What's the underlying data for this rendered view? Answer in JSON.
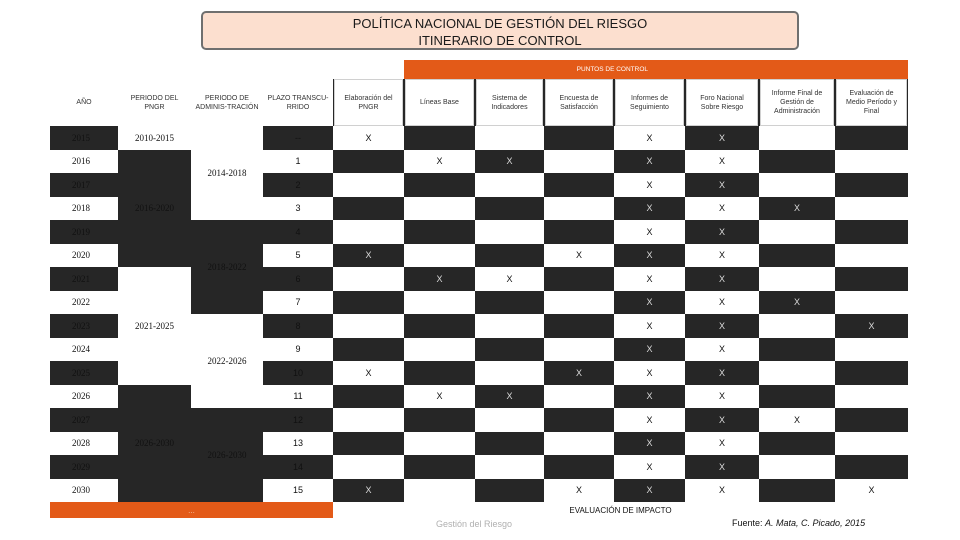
{
  "title": {
    "line1": "POLÍTICA NACIONAL DE GESTIÓN DEL RIESGO",
    "line2": "ITINERARIO DE CONTROL"
  },
  "table": {
    "puntos_header": "PUNTOS DE CONTROL",
    "col_headers": {
      "anio": "AÑO",
      "periodo_pngr": "PERIODO DEL PNGR",
      "periodo_admin": "PERIODO DE ADMINIS-TRACIÓN",
      "plazo": "PLAZO TRANSCU-RRIDO",
      "c1": "Elaboración del PNGR",
      "c2": "Líneas Base",
      "c3": "Sistema de Indicadores",
      "c4": "Encuesta de Satisfacción",
      "c5": "Informes de Seguimiento",
      "c6": "Foro Nacional Sobre Riesgo",
      "c7": "Informe Final de Gestión de Administración",
      "c8": "Evaluación de Medio Período y Final"
    },
    "years": [
      "2015",
      "2016",
      "2017",
      "2018",
      "2019",
      "2020",
      "2021",
      "2022",
      "2023",
      "2024",
      "2025",
      "2026",
      "2027",
      "2028",
      "2029",
      "2030"
    ],
    "plazo": [
      "--",
      "1",
      "2",
      "3",
      "4",
      "5",
      "6",
      "7",
      "8",
      "9",
      "10",
      "11",
      "12",
      "13",
      "14",
      "15"
    ],
    "pngr_periods": [
      "2010-2015",
      "2016-2020",
      "2021-2025",
      "2026-2030"
    ],
    "admin_periods": [
      "2014-2018",
      "2018-2022",
      "2022-2026",
      "2026-2030"
    ],
    "marks": [
      [
        "X",
        "",
        "",
        "",
        "X",
        "X",
        "",
        ""
      ],
      [
        "",
        "X",
        "X",
        "",
        "X",
        "X",
        "",
        ""
      ],
      [
        "",
        "",
        "",
        "",
        "X",
        "X",
        "",
        ""
      ],
      [
        "",
        "",
        "",
        "",
        "X",
        "X",
        "X",
        ""
      ],
      [
        "",
        "",
        "",
        "",
        "X",
        "X",
        "",
        ""
      ],
      [
        "X",
        "",
        "",
        "X",
        "X",
        "X",
        "",
        ""
      ],
      [
        "",
        "X",
        "X",
        "",
        "X",
        "X",
        "",
        ""
      ],
      [
        "",
        "",
        "",
        "",
        "X",
        "X",
        "X",
        ""
      ],
      [
        "",
        "",
        "",
        "",
        "X",
        "X",
        "",
        "X"
      ],
      [
        "",
        "",
        "",
        "",
        "X",
        "X",
        "",
        ""
      ],
      [
        "X",
        "",
        "",
        "X",
        "X",
        "X",
        "",
        ""
      ],
      [
        "",
        "X",
        "X",
        "",
        "X",
        "X",
        "",
        ""
      ],
      [
        "",
        "",
        "",
        "",
        "X",
        "X",
        "X",
        ""
      ],
      [
        "",
        "",
        "",
        "",
        "X",
        "X",
        "",
        ""
      ],
      [
        "",
        "",
        "",
        "",
        "X",
        "X",
        "",
        ""
      ],
      [
        "X",
        "",
        "",
        "X",
        "X",
        "X",
        "",
        "X"
      ]
    ],
    "footer_left": "...",
    "footer_center": "EVALUACIÓN DE IMPACTO"
  },
  "background_text": "Gestión del Riesgo",
  "source": {
    "prefix": "Fuente: ",
    "authors": "A. Mata, C. Picado, 2015"
  }
}
